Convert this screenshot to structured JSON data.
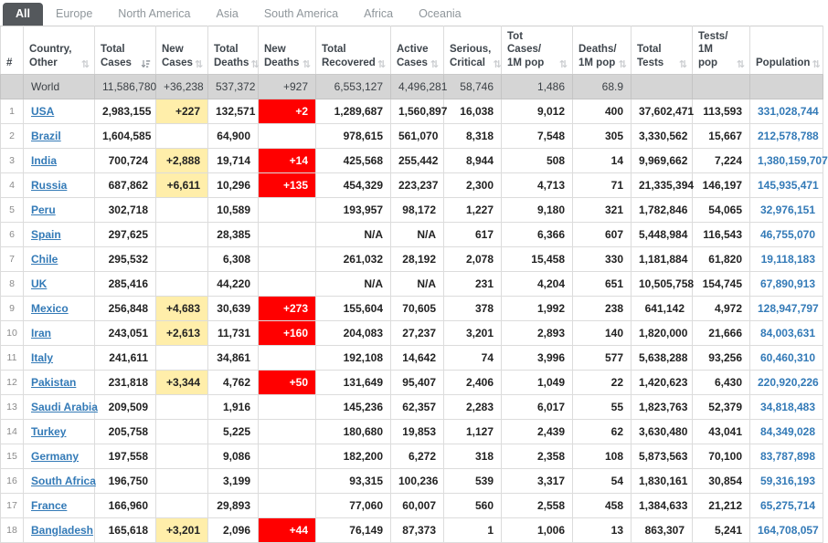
{
  "colors": {
    "new_cases_highlight": "#FFEEAA",
    "new_deaths_highlight": "#FF0000",
    "link_blue": "#337ab7",
    "world_row_bg": "#d5d5d5",
    "active_tab_bg": "#54585c"
  },
  "tabs": [
    {
      "label": "All",
      "active": true
    },
    {
      "label": "Europe",
      "active": false
    },
    {
      "label": "North America",
      "active": false
    },
    {
      "label": "Asia",
      "active": false
    },
    {
      "label": "South America",
      "active": false
    },
    {
      "label": "Africa",
      "active": false
    },
    {
      "label": "Oceania",
      "active": false
    }
  ],
  "table": {
    "columns": [
      {
        "key": "rank",
        "label": "#",
        "sortable": false,
        "sort": "none"
      },
      {
        "key": "country",
        "label": "Country,\nOther",
        "sortable": true,
        "sort": "inactive"
      },
      {
        "key": "total_cases",
        "label": "Total\nCases",
        "sortable": true,
        "sort": "desc"
      },
      {
        "key": "new_cases",
        "label": "New\nCases",
        "sortable": true,
        "sort": "inactive"
      },
      {
        "key": "total_deaths",
        "label": "Total\nDeaths",
        "sortable": true,
        "sort": "inactive"
      },
      {
        "key": "new_deaths",
        "label": "New\nDeaths",
        "sortable": true,
        "sort": "inactive"
      },
      {
        "key": "total_recovered",
        "label": "Total\nRecovered",
        "sortable": true,
        "sort": "inactive"
      },
      {
        "key": "active_cases",
        "label": "Active\nCases",
        "sortable": true,
        "sort": "inactive"
      },
      {
        "key": "serious_critical",
        "label": "Serious,\nCritical",
        "sortable": true,
        "sort": "inactive"
      },
      {
        "key": "cases_1m",
        "label": "Tot Cases/\n1M pop",
        "sortable": true,
        "sort": "inactive"
      },
      {
        "key": "deaths_1m",
        "label": "Deaths/\n1M pop",
        "sortable": true,
        "sort": "inactive"
      },
      {
        "key": "total_tests",
        "label": "Total\nTests",
        "sortable": true,
        "sort": "inactive"
      },
      {
        "key": "tests_1m",
        "label": "Tests/\n1M pop",
        "sortable": true,
        "sort": "inactive"
      },
      {
        "key": "population",
        "label": "Population",
        "sortable": true,
        "sort": "inactive"
      }
    ],
    "world_row": {
      "rank": "",
      "country": "World",
      "total_cases": "11,586,780",
      "new_cases": "+36,238",
      "total_deaths": "537,372",
      "new_deaths": "+927",
      "total_recovered": "6,553,127",
      "active_cases": "4,496,281",
      "serious_critical": "58,746",
      "cases_1m": "1,486",
      "deaths_1m": "68.9",
      "total_tests": "",
      "tests_1m": "",
      "population": ""
    },
    "rows": [
      {
        "rank": "1",
        "country": "USA",
        "total_cases": "2,983,155",
        "new_cases": "+227",
        "total_deaths": "132,571",
        "new_deaths": "+2",
        "total_recovered": "1,289,687",
        "active_cases": "1,560,897",
        "serious_critical": "16,038",
        "cases_1m": "9,012",
        "deaths_1m": "400",
        "total_tests": "37,602,471",
        "tests_1m": "113,593",
        "population": "331,028,744"
      },
      {
        "rank": "2",
        "country": "Brazil",
        "total_cases": "1,604,585",
        "new_cases": "",
        "total_deaths": "64,900",
        "new_deaths": "",
        "total_recovered": "978,615",
        "active_cases": "561,070",
        "serious_critical": "8,318",
        "cases_1m": "7,548",
        "deaths_1m": "305",
        "total_tests": "3,330,562",
        "tests_1m": "15,667",
        "population": "212,578,788"
      },
      {
        "rank": "3",
        "country": "India",
        "total_cases": "700,724",
        "new_cases": "+2,888",
        "total_deaths": "19,714",
        "new_deaths": "+14",
        "total_recovered": "425,568",
        "active_cases": "255,442",
        "serious_critical": "8,944",
        "cases_1m": "508",
        "deaths_1m": "14",
        "total_tests": "9,969,662",
        "tests_1m": "7,224",
        "population": "1,380,159,707"
      },
      {
        "rank": "4",
        "country": "Russia",
        "total_cases": "687,862",
        "new_cases": "+6,611",
        "total_deaths": "10,296",
        "new_deaths": "+135",
        "total_recovered": "454,329",
        "active_cases": "223,237",
        "serious_critical": "2,300",
        "cases_1m": "4,713",
        "deaths_1m": "71",
        "total_tests": "21,335,394",
        "tests_1m": "146,197",
        "population": "145,935,471"
      },
      {
        "rank": "5",
        "country": "Peru",
        "total_cases": "302,718",
        "new_cases": "",
        "total_deaths": "10,589",
        "new_deaths": "",
        "total_recovered": "193,957",
        "active_cases": "98,172",
        "serious_critical": "1,227",
        "cases_1m": "9,180",
        "deaths_1m": "321",
        "total_tests": "1,782,846",
        "tests_1m": "54,065",
        "population": "32,976,151"
      },
      {
        "rank": "6",
        "country": "Spain",
        "total_cases": "297,625",
        "new_cases": "",
        "total_deaths": "28,385",
        "new_deaths": "",
        "total_recovered": "N/A",
        "active_cases": "N/A",
        "serious_critical": "617",
        "cases_1m": "6,366",
        "deaths_1m": "607",
        "total_tests": "5,448,984",
        "tests_1m": "116,543",
        "population": "46,755,070"
      },
      {
        "rank": "7",
        "country": "Chile",
        "total_cases": "295,532",
        "new_cases": "",
        "total_deaths": "6,308",
        "new_deaths": "",
        "total_recovered": "261,032",
        "active_cases": "28,192",
        "serious_critical": "2,078",
        "cases_1m": "15,458",
        "deaths_1m": "330",
        "total_tests": "1,181,884",
        "tests_1m": "61,820",
        "population": "19,118,183"
      },
      {
        "rank": "8",
        "country": "UK",
        "total_cases": "285,416",
        "new_cases": "",
        "total_deaths": "44,220",
        "new_deaths": "",
        "total_recovered": "N/A",
        "active_cases": "N/A",
        "serious_critical": "231",
        "cases_1m": "4,204",
        "deaths_1m": "651",
        "total_tests": "10,505,758",
        "tests_1m": "154,745",
        "population": "67,890,913"
      },
      {
        "rank": "9",
        "country": "Mexico",
        "total_cases": "256,848",
        "new_cases": "+4,683",
        "total_deaths": "30,639",
        "new_deaths": "+273",
        "total_recovered": "155,604",
        "active_cases": "70,605",
        "serious_critical": "378",
        "cases_1m": "1,992",
        "deaths_1m": "238",
        "total_tests": "641,142",
        "tests_1m": "4,972",
        "population": "128,947,797"
      },
      {
        "rank": "10",
        "country": "Iran",
        "total_cases": "243,051",
        "new_cases": "+2,613",
        "total_deaths": "11,731",
        "new_deaths": "+160",
        "total_recovered": "204,083",
        "active_cases": "27,237",
        "serious_critical": "3,201",
        "cases_1m": "2,893",
        "deaths_1m": "140",
        "total_tests": "1,820,000",
        "tests_1m": "21,666",
        "population": "84,003,631"
      },
      {
        "rank": "11",
        "country": "Italy",
        "total_cases": "241,611",
        "new_cases": "",
        "total_deaths": "34,861",
        "new_deaths": "",
        "total_recovered": "192,108",
        "active_cases": "14,642",
        "serious_critical": "74",
        "cases_1m": "3,996",
        "deaths_1m": "577",
        "total_tests": "5,638,288",
        "tests_1m": "93,256",
        "population": "60,460,310"
      },
      {
        "rank": "12",
        "country": "Pakistan",
        "total_cases": "231,818",
        "new_cases": "+3,344",
        "total_deaths": "4,762",
        "new_deaths": "+50",
        "total_recovered": "131,649",
        "active_cases": "95,407",
        "serious_critical": "2,406",
        "cases_1m": "1,049",
        "deaths_1m": "22",
        "total_tests": "1,420,623",
        "tests_1m": "6,430",
        "population": "220,920,226"
      },
      {
        "rank": "13",
        "country": "Saudi Arabia",
        "total_cases": "209,509",
        "new_cases": "",
        "total_deaths": "1,916",
        "new_deaths": "",
        "total_recovered": "145,236",
        "active_cases": "62,357",
        "serious_critical": "2,283",
        "cases_1m": "6,017",
        "deaths_1m": "55",
        "total_tests": "1,823,763",
        "tests_1m": "52,379",
        "population": "34,818,483"
      },
      {
        "rank": "14",
        "country": "Turkey",
        "total_cases": "205,758",
        "new_cases": "",
        "total_deaths": "5,225",
        "new_deaths": "",
        "total_recovered": "180,680",
        "active_cases": "19,853",
        "serious_critical": "1,127",
        "cases_1m": "2,439",
        "deaths_1m": "62",
        "total_tests": "3,630,480",
        "tests_1m": "43,041",
        "population": "84,349,028"
      },
      {
        "rank": "15",
        "country": "Germany",
        "total_cases": "197,558",
        "new_cases": "",
        "total_deaths": "9,086",
        "new_deaths": "",
        "total_recovered": "182,200",
        "active_cases": "6,272",
        "serious_critical": "318",
        "cases_1m": "2,358",
        "deaths_1m": "108",
        "total_tests": "5,873,563",
        "tests_1m": "70,100",
        "population": "83,787,898"
      },
      {
        "rank": "16",
        "country": "South Africa",
        "total_cases": "196,750",
        "new_cases": "",
        "total_deaths": "3,199",
        "new_deaths": "",
        "total_recovered": "93,315",
        "active_cases": "100,236",
        "serious_critical": "539",
        "cases_1m": "3,317",
        "deaths_1m": "54",
        "total_tests": "1,830,161",
        "tests_1m": "30,854",
        "population": "59,316,193"
      },
      {
        "rank": "17",
        "country": "France",
        "total_cases": "166,960",
        "new_cases": "",
        "total_deaths": "29,893",
        "new_deaths": "",
        "total_recovered": "77,060",
        "active_cases": "60,007",
        "serious_critical": "560",
        "cases_1m": "2,558",
        "deaths_1m": "458",
        "total_tests": "1,384,633",
        "tests_1m": "21,212",
        "population": "65,275,714"
      },
      {
        "rank": "18",
        "country": "Bangladesh",
        "total_cases": "165,618",
        "new_cases": "+3,201",
        "total_deaths": "2,096",
        "new_deaths": "+44",
        "total_recovered": "76,149",
        "active_cases": "87,373",
        "serious_critical": "1",
        "cases_1m": "1,006",
        "deaths_1m": "13",
        "total_tests": "863,307",
        "tests_1m": "5,241",
        "population": "164,708,057"
      }
    ]
  }
}
